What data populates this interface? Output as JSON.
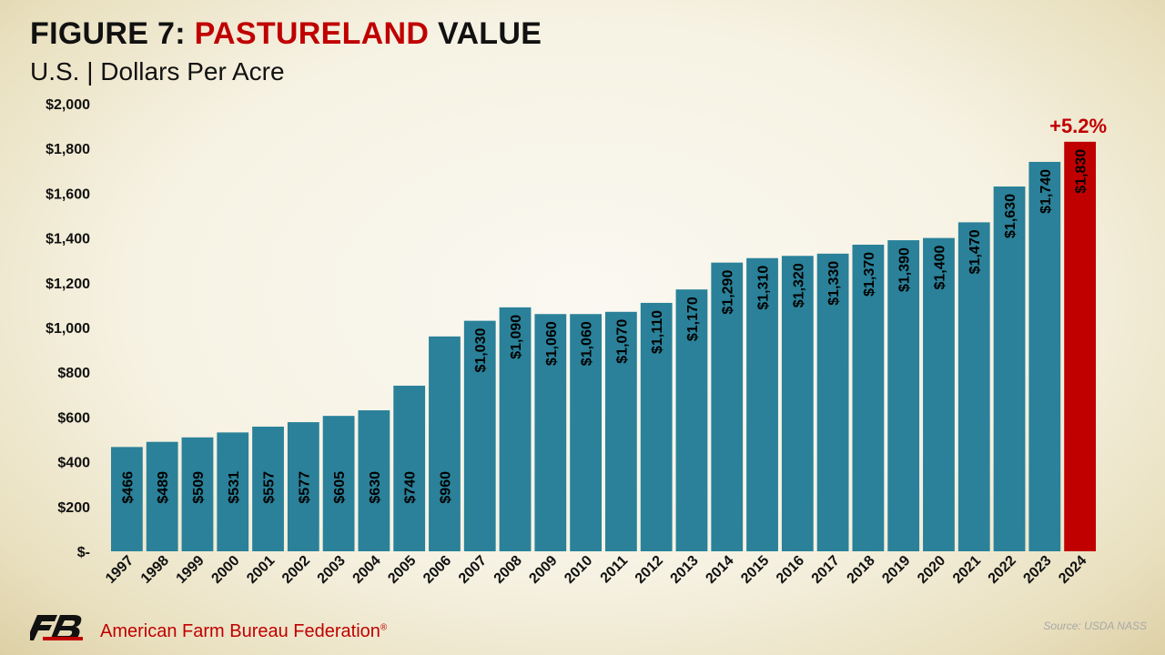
{
  "header": {
    "title_prefix": "FIGURE 7: ",
    "title_highlight": "PASTURELAND",
    "title_suffix": " VALUE",
    "subtitle": "U.S. | Dollars Per Acre"
  },
  "chart_data": {
    "type": "bar",
    "title": "FIGURE 7: PASTURELAND VALUE",
    "subtitle": "U.S. | Dollars Per Acre",
    "xlabel": "",
    "ylabel": "",
    "ylim": [
      0,
      2000
    ],
    "yticks": [
      0,
      200,
      400,
      600,
      800,
      1000,
      1200,
      1400,
      1600,
      1800,
      2000
    ],
    "ytick_labels": [
      "$-",
      "$200",
      "$400",
      "$600",
      "$800",
      "$1,000",
      "$1,200",
      "$1,400",
      "$1,600",
      "$1,800",
      "$2,000"
    ],
    "grid": false,
    "categories": [
      "1997",
      "1998",
      "1999",
      "2000",
      "2001",
      "2002",
      "2003",
      "2004",
      "2005",
      "2006",
      "2007",
      "2008",
      "2009",
      "2010",
      "2011",
      "2012",
      "2013",
      "2014",
      "2015",
      "2016",
      "2017",
      "2018",
      "2019",
      "2020",
      "2021",
      "2022",
      "2023",
      "2024"
    ],
    "values": [
      466,
      489,
      509,
      531,
      557,
      577,
      605,
      630,
      740,
      960,
      1030,
      1090,
      1060,
      1060,
      1070,
      1110,
      1170,
      1290,
      1310,
      1320,
      1330,
      1370,
      1390,
      1400,
      1470,
      1630,
      1740,
      1830
    ],
    "value_labels": [
      "$466",
      "$489",
      "$509",
      "$531",
      "$557",
      "$577",
      "$605",
      "$630",
      "$740",
      "$960",
      "$1,030",
      "$1,090",
      "$1,060",
      "$1,060",
      "$1,070",
      "$1,110",
      "$1,170",
      "$1,290",
      "$1,310",
      "$1,320",
      "$1,330",
      "$1,370",
      "$1,390",
      "$1,400",
      "$1,470",
      "$1,630",
      "$1,740",
      "$1,830"
    ],
    "colors": {
      "default": "#2a8199",
      "highlight": "#c00000"
    },
    "highlight_index": 27,
    "annotation": {
      "text": "+5.2%",
      "category": "2024"
    }
  },
  "footer": {
    "org_name": "American Farm Bureau Federation",
    "registered_mark": "®",
    "source": "Source: USDA NASS",
    "logo_icon": "fb-logo-icon"
  }
}
